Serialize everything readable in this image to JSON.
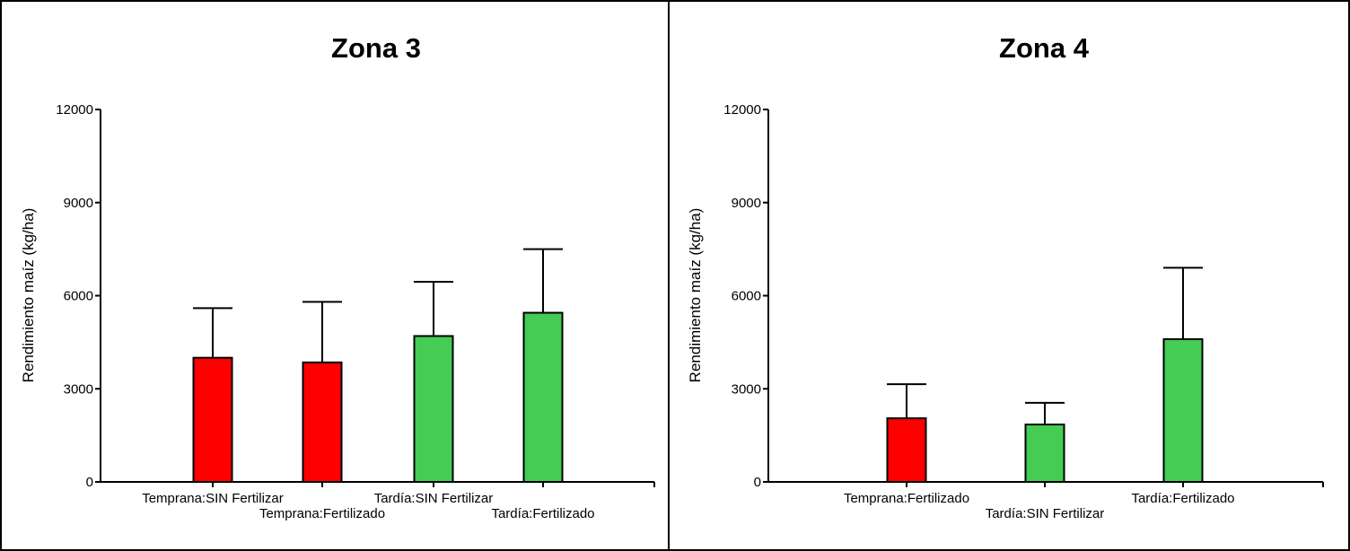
{
  "chart_data": [
    {
      "type": "bar",
      "title": "Zona 3",
      "ylabel": "Rendimiento maíz (kg/ha)",
      "xlabel": "",
      "ylim": [
        0,
        12000
      ],
      "yticks": [
        "0",
        "3000",
        "6000",
        "9000",
        "12000"
      ],
      "categories": [
        "Temprana:SIN Fertilizar",
        "Temprana:Fertilizado",
        "Tardía:SIN Fertilizar",
        "Tardía:Fertilizado"
      ],
      "values": [
        4000,
        3850,
        4700,
        5450
      ],
      "error_upper": [
        5600,
        5800,
        6450,
        7500
      ],
      "colors": [
        "#ff0000",
        "#ff0000",
        "#44cc55",
        "#44cc55"
      ]
    },
    {
      "type": "bar",
      "title": "Zona 4",
      "ylabel": "Rendimiento maíz (kg/ha)",
      "xlabel": "",
      "ylim": [
        0,
        12000
      ],
      "yticks": [
        "0",
        "3000",
        "6000",
        "9000",
        "12000"
      ],
      "categories": [
        "Temprana:Fertilizado",
        "Tardía:SIN Fertilizar",
        "Tardía:Fertilizado"
      ],
      "values": [
        2050,
        1850,
        4600
      ],
      "error_upper": [
        3150,
        2550,
        6900
      ],
      "colors": [
        "#ff0000",
        "#44cc55",
        "#44cc55"
      ]
    }
  ]
}
